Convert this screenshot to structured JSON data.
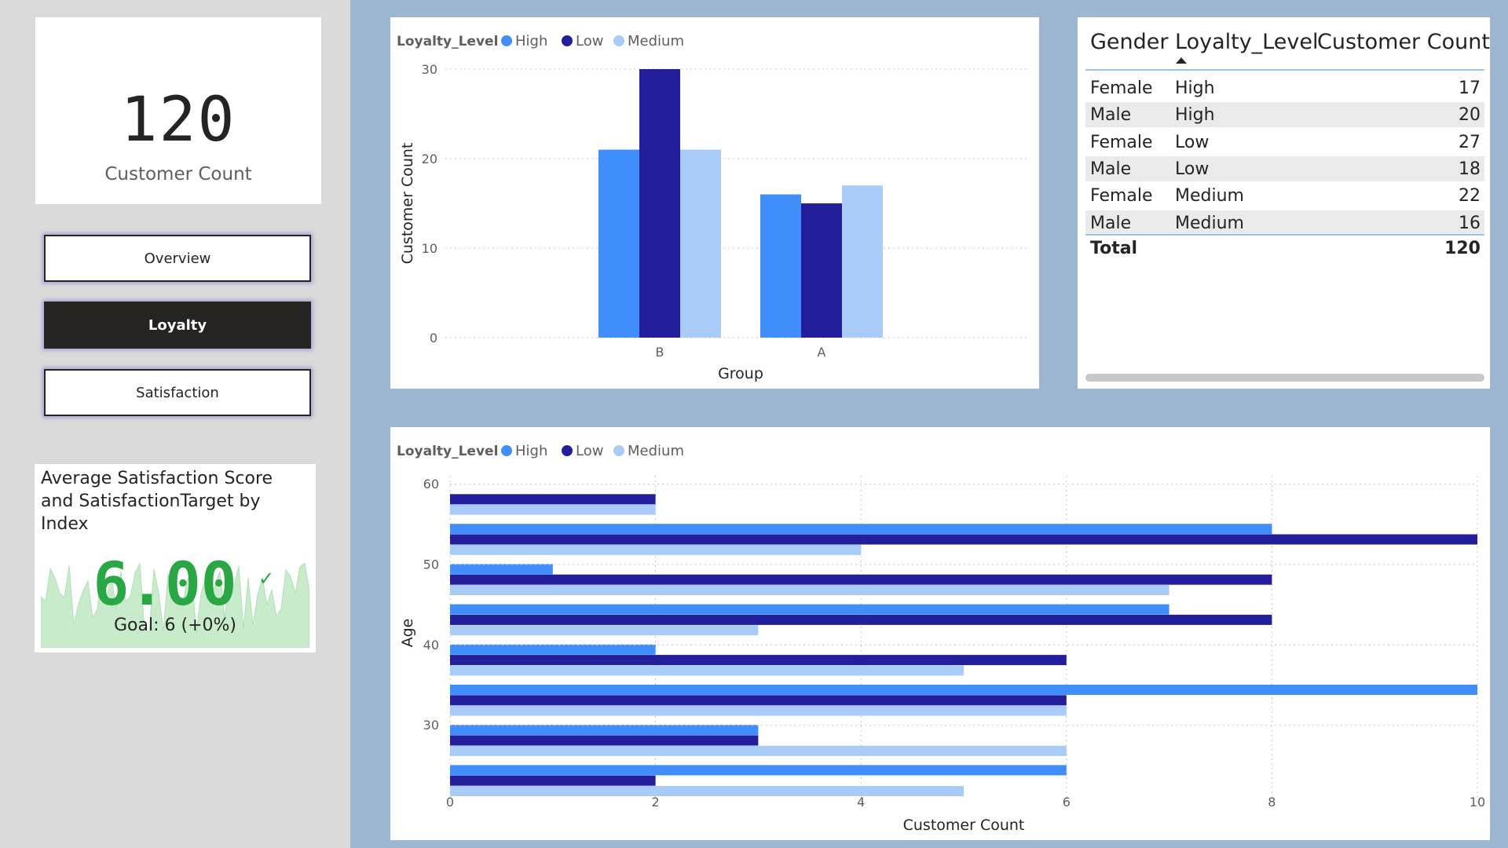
{
  "kpi": {
    "value": "120",
    "label": "Customer Count"
  },
  "nav": {
    "overview": "Overview",
    "loyalty": "Loyalty",
    "satisfaction": "Satisfaction"
  },
  "gauge": {
    "title": "Average Satisfaction Score and SatisfactionTarget by Index",
    "value": "6.00",
    "check": "✓",
    "goal": "Goal: 6 (+0%)",
    "color": "#2aa745",
    "spark_color": "#c8ebcc"
  },
  "colors": {
    "high": "#3f8efc",
    "low": "#221e9c",
    "medium": "#a8ccf7"
  },
  "table": {
    "columns": [
      "Gender",
      "Loyalty_Level",
      "Customer Count"
    ],
    "sort_icon": "sort-ascending-icon",
    "rows": [
      [
        "Female",
        "High",
        "17"
      ],
      [
        "Male",
        "High",
        "20"
      ],
      [
        "Female",
        "Low",
        "27"
      ],
      [
        "Male",
        "Low",
        "18"
      ],
      [
        "Female",
        "Medium",
        "22"
      ],
      [
        "Male",
        "Medium",
        "16"
      ]
    ],
    "total_label": "Total",
    "total_value": "120"
  },
  "chart_data": [
    {
      "type": "bar",
      "orientation": "vertical",
      "legend_title": "Loyalty_Level",
      "legend_position": "top-left",
      "xlabel": "Group",
      "ylabel": "Customer Count",
      "categories": [
        "B",
        "A"
      ],
      "series": [
        {
          "name": "High",
          "values": [
            21,
            16
          ]
        },
        {
          "name": "Low",
          "values": [
            30,
            15
          ]
        },
        {
          "name": "Medium",
          "values": [
            21,
            17
          ]
        }
      ],
      "ylim": [
        0,
        30
      ],
      "yticks": [
        0,
        10,
        20,
        30
      ],
      "grid": true
    },
    {
      "type": "bar",
      "orientation": "horizontal",
      "legend_title": "Loyalty_Level",
      "legend_position": "top-left",
      "xlabel": "Customer Count",
      "ylabel": "Age",
      "ages": [
        60,
        55,
        50,
        45,
        40,
        35,
        30,
        25
      ],
      "series": [
        {
          "name": "High",
          "values": [
            0,
            8,
            1,
            7,
            2,
            10,
            3,
            6
          ]
        },
        {
          "name": "Low",
          "values": [
            2,
            10,
            8,
            8,
            6,
            6,
            3,
            2
          ]
        },
        {
          "name": "Medium",
          "values": [
            2,
            4,
            7,
            3,
            5,
            6,
            6,
            5
          ]
        }
      ],
      "xlim": [
        0,
        10
      ],
      "xticks": [
        0,
        2,
        4,
        6,
        8,
        10
      ],
      "yticks": [
        60,
        50,
        40,
        30
      ],
      "grid": true
    }
  ]
}
